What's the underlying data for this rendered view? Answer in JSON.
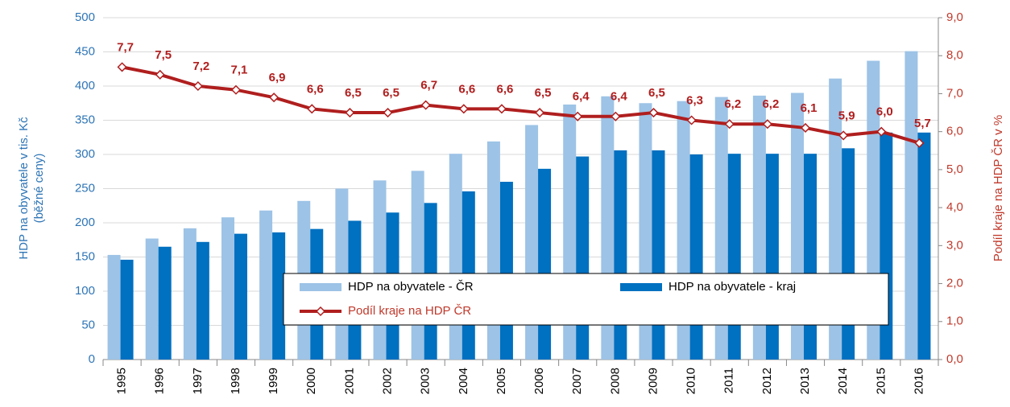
{
  "chart_data": {
    "type": "bar",
    "y_label": [
      "HDP na obyvatele v tis. Kč",
      "(běžné ceny)"
    ],
    "y2_label": "Podíl kraje na HDP ČR v %",
    "categories": [
      "1995",
      "1996",
      "1997",
      "1998",
      "1999",
      "2000",
      "2001",
      "2002",
      "2003",
      "2004",
      "2005",
      "2006",
      "2007",
      "2008",
      "2009",
      "2010",
      "2011",
      "2012",
      "2013",
      "2014",
      "2015",
      "2016"
    ],
    "series": [
      {
        "name": "HDP na obyvatele - ČR",
        "type": "bar",
        "color": "#9dc3e6",
        "values": [
          153,
          177,
          192,
          208,
          218,
          232,
          250,
          262,
          276,
          301,
          319,
          343,
          373,
          385,
          375,
          378,
          384,
          386,
          390,
          411,
          437,
          451
        ]
      },
      {
        "name": "HDP na obyvatele - kraj",
        "type": "bar",
        "color": "#0070c0",
        "values": [
          146,
          165,
          172,
          184,
          186,
          191,
          203,
          215,
          229,
          246,
          260,
          279,
          297,
          306,
          306,
          300,
          301,
          301,
          301,
          309,
          332,
          332
        ]
      },
      {
        "name": "Podíl kraje na HDP ČR",
        "type": "line",
        "axis": "y2",
        "color": "#b01e1e",
        "values": [
          7.7,
          7.5,
          7.2,
          7.1,
          6.9,
          6.6,
          6.5,
          6.5,
          6.7,
          6.6,
          6.6,
          6.5,
          6.4,
          6.4,
          6.5,
          6.3,
          6.2,
          6.2,
          6.1,
          5.9,
          6.0,
          5.7
        ],
        "value_labels": [
          "7,7",
          "7,5",
          "7,2",
          "7,1",
          "6,9",
          "6,6",
          "6,5",
          "6,5",
          "6,7",
          "6,6",
          "6,6",
          "6,5",
          "6,4",
          "6,4",
          "6,5",
          "6,3",
          "6,2",
          "6,2",
          "6,1",
          "5,9",
          "6,0",
          "5,7"
        ]
      }
    ],
    "ylim": [
      0,
      500
    ],
    "yticks": [
      0,
      50,
      100,
      150,
      200,
      250,
      300,
      350,
      400,
      450,
      500
    ],
    "y2lim": [
      0,
      9
    ],
    "y2ticks": [
      {
        "value": 0,
        "label": "0,0"
      },
      {
        "value": 1,
        "label": "1,0"
      },
      {
        "value": 2,
        "label": "2,0"
      },
      {
        "value": 3,
        "label": "3,0"
      },
      {
        "value": 4,
        "label": "4,0"
      },
      {
        "value": 5,
        "label": "5,0"
      },
      {
        "value": 6,
        "label": "6,0"
      },
      {
        "value": 7,
        "label": "7,0"
      },
      {
        "value": 8,
        "label": "8,0"
      },
      {
        "value": 9,
        "label": "9,0"
      }
    ],
    "grid": true
  }
}
